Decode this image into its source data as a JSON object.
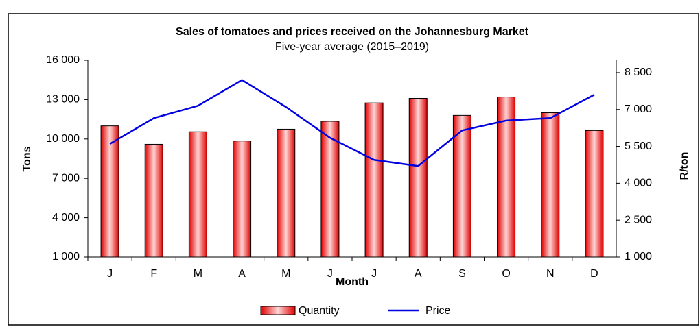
{
  "chart_data": {
    "type": "bar_line",
    "title": "Sales of tomatoes and prices received on the Johannesburg Market",
    "subtitle": "Five-year average (2015–2019)",
    "x_label": "Month",
    "y_label": "Tons",
    "y2_label": "R/ton",
    "categories": [
      "J",
      "F",
      "M",
      "A",
      "M",
      "J",
      "J",
      "A",
      "S",
      "O",
      "N",
      "D"
    ],
    "series": [
      {
        "name": "Quantity",
        "type": "bar",
        "color": "#ff0000",
        "values": [
          11000,
          9600,
          10550,
          9850,
          10750,
          11350,
          12750,
          13100,
          11800,
          13200,
          12000,
          10650
        ]
      },
      {
        "name": "Price",
        "type": "line",
        "axis": "y2",
        "color": "#0000e0",
        "values": [
          5600,
          6650,
          7150,
          8200,
          7100,
          5850,
          4950,
          4700,
          6150,
          6550,
          6650,
          7600
        ]
      }
    ],
    "ylim": [
      1000,
      16000
    ],
    "yticks": [
      {
        "value": 1000,
        "label": "1 000"
      },
      {
        "value": 4000,
        "label": "4 000"
      },
      {
        "value": 7000,
        "label": "7 000"
      },
      {
        "value": 10000,
        "label": "10 000"
      },
      {
        "value": 13000,
        "label": "13 000"
      },
      {
        "value": 16000,
        "label": "16 000"
      }
    ],
    "y2lim": [
      1000,
      9000
    ],
    "y2ticks": [
      {
        "value": 1000,
        "label": "1 000"
      },
      {
        "value": 2500,
        "label": "2 500"
      },
      {
        "value": 4000,
        "label": "4 000"
      },
      {
        "value": 5500,
        "label": "5 500"
      },
      {
        "value": 7000,
        "label": "7 000"
      },
      {
        "value": 8500,
        "label": "8 500"
      }
    ],
    "legend": "bottom"
  }
}
